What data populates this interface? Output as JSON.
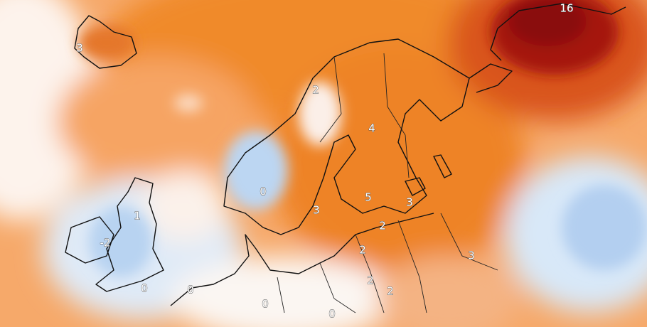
{
  "map": {
    "labels": [
      {
        "text": "3"
      },
      {
        "text": "16"
      },
      {
        "text": "2"
      },
      {
        "text": "4"
      },
      {
        "text": "0"
      },
      {
        "text": "1"
      },
      {
        "text": "-2"
      },
      {
        "text": "5"
      },
      {
        "text": "3"
      },
      {
        "text": "3"
      },
      {
        "text": "2"
      },
      {
        "text": "2"
      },
      {
        "text": "3"
      },
      {
        "text": "2"
      },
      {
        "text": "2"
      },
      {
        "text": "0"
      },
      {
        "text": "0"
      },
      {
        "text": "0"
      },
      {
        "text": "0"
      }
    ]
  }
}
